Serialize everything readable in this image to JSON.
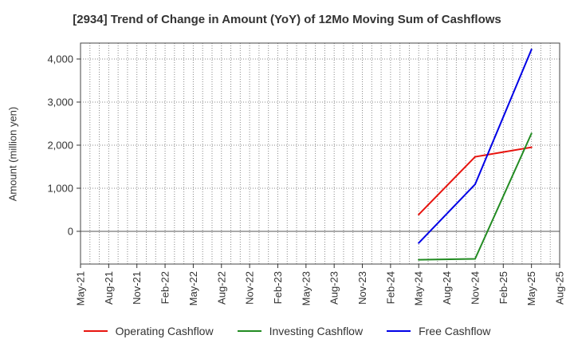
{
  "chart_data": {
    "type": "line",
    "title": "[2934]  Trend of Change in Amount (YoY) of 12Mo Moving Sum of Cashflows",
    "xlabel": "",
    "ylabel": "Amount (million yen)",
    "x_ticks": [
      "May-21",
      "Aug-21",
      "Nov-21",
      "Feb-22",
      "May-22",
      "Aug-22",
      "Nov-22",
      "Feb-23",
      "May-23",
      "Aug-23",
      "Nov-23",
      "Feb-24",
      "May-24",
      "Aug-24",
      "Nov-24",
      "Feb-25",
      "May-25",
      "Aug-25"
    ],
    "y_ticks": [
      0,
      1000,
      2000,
      3000,
      4000
    ],
    "y_tick_labels": [
      "0",
      "1,000",
      "2,000",
      "3,000",
      "4,000"
    ],
    "ylim": [
      -760,
      4370
    ],
    "grid": true,
    "legend_position": "bottom",
    "x": [
      "May-24",
      "Nov-24",
      "May-25"
    ],
    "series": [
      {
        "name": "Operating Cashflow",
        "color": "#e8140f",
        "values": [
          390,
          1730,
          1950
        ]
      },
      {
        "name": "Investing Cashflow",
        "color": "#228b22",
        "values": [
          -660,
          -640,
          2270
        ]
      },
      {
        "name": "Free Cashflow",
        "color": "#0000e6",
        "values": [
          -270,
          1090,
          4220
        ]
      }
    ]
  }
}
